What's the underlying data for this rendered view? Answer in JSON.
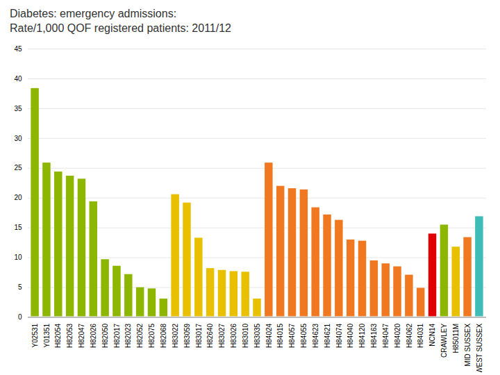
{
  "chart_data": {
    "type": "bar",
    "title": "Diabetes: emergency admissions:\nRate/1,000 QOF registered patients: 2011/12",
    "categories": [
      "Y02531",
      "Y01351",
      "H82054",
      "H82053",
      "H82047",
      "H82026",
      "H82050",
      "H82017",
      "H82023",
      "H82052",
      "H82075",
      "H82068",
      "H83022",
      "H83059",
      "H83017",
      "H82640",
      "H83027",
      "H83026",
      "H83010",
      "H83035",
      "H84024",
      "H84015",
      "H84057",
      "H84055",
      "H84623",
      "H84621",
      "H84074",
      "H84040",
      "H84120",
      "H84163",
      "H84047",
      "H84020",
      "H84062",
      "H84031",
      "NCN14",
      "CRAWLEY",
      "H85011M",
      "MID SUSSEX",
      "WEST SUSSEX"
    ],
    "values": [
      38.5,
      26.0,
      24.5,
      23.8,
      23.3,
      19.5,
      9.8,
      8.7,
      7.3,
      5.1,
      4.9,
      3.2,
      20.7,
      19.3,
      13.4,
      8.3,
      8.0,
      7.8,
      7.7,
      3.2,
      26.0,
      22.1,
      21.7,
      21.5,
      18.5,
      17.3,
      16.4,
      13.1,
      12.9,
      9.6,
      9.1,
      8.6,
      7.2,
      5.0,
      14.1,
      15.6,
      11.9,
      13.5,
      17.0
    ],
    "colors": [
      "#8db600",
      "#8db600",
      "#8db600",
      "#8db600",
      "#8db600",
      "#8db600",
      "#8db600",
      "#8db600",
      "#8db600",
      "#8db600",
      "#8db600",
      "#8db600",
      "#e8c000",
      "#e8c000",
      "#e8c000",
      "#e8c000",
      "#e8c000",
      "#e8c000",
      "#e8c000",
      "#e8c000",
      "#f07820",
      "#f07820",
      "#f07820",
      "#f07820",
      "#f07820",
      "#f07820",
      "#f07820",
      "#f07820",
      "#f07820",
      "#f07820",
      "#f07820",
      "#f07820",
      "#f07820",
      "#f07820",
      "#e00000",
      "#8db600",
      "#e8c000",
      "#f07820",
      "#40bcb8"
    ],
    "ylim": [
      0,
      45
    ],
    "yticks": [
      0,
      5,
      10,
      15,
      20,
      25,
      30,
      35,
      40,
      45
    ],
    "grid": true
  }
}
